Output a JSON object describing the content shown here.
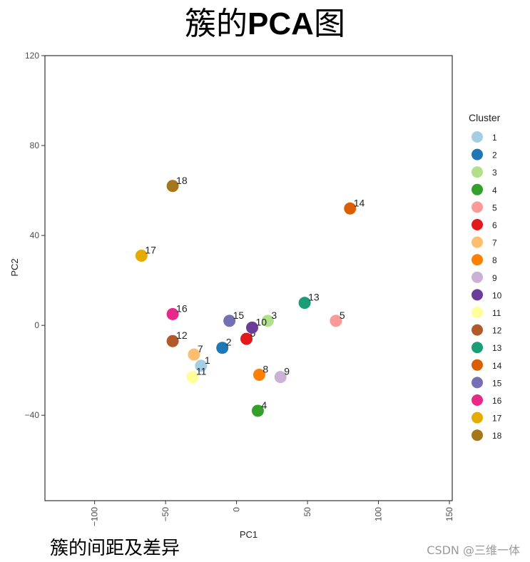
{
  "title": {
    "main": "簇的",
    "bold": "PCA",
    "tail": "图"
  },
  "caption": "簇的间距及差异",
  "watermark": "CSDN @三维一体",
  "chart_data": {
    "type": "scatter",
    "xlabel": "PC1",
    "ylabel": "PC2",
    "xlim": [
      -135,
      152
    ],
    "ylim": [
      -78,
      120
    ],
    "xticks": [
      -100,
      -50,
      0,
      50,
      100,
      150
    ],
    "yticks": [
      -40,
      0,
      40,
      80,
      120
    ],
    "grid": false,
    "legend": {
      "title": "Cluster",
      "position": "right"
    },
    "points": [
      {
        "label": "1",
        "x": -25,
        "y": -18,
        "color": "#a6cee3"
      },
      {
        "label": "2",
        "x": -10,
        "y": -10,
        "color": "#1f78b4"
      },
      {
        "label": "3",
        "x": 22,
        "y": 2,
        "color": "#b2df8a"
      },
      {
        "label": "4",
        "x": 15,
        "y": -38,
        "color": "#33a02c"
      },
      {
        "label": "5",
        "x": 70,
        "y": 2,
        "color": "#fb9a99"
      },
      {
        "label": "6",
        "x": 7,
        "y": -6,
        "color": "#e31a1c"
      },
      {
        "label": "7",
        "x": -30,
        "y": -13,
        "color": "#fdbf6f"
      },
      {
        "label": "8",
        "x": 16,
        "y": -22,
        "color": "#ff7f00"
      },
      {
        "label": "9",
        "x": 31,
        "y": -23,
        "color": "#cab2d6"
      },
      {
        "label": "10",
        "x": 11,
        "y": -1,
        "color": "#6a3d9a"
      },
      {
        "label": "11",
        "x": -31,
        "y": -23,
        "color": "#ffff99"
      },
      {
        "label": "12",
        "x": -45,
        "y": -7,
        "color": "#b15928"
      },
      {
        "label": "13",
        "x": 48,
        "y": 10,
        "color": "#1b9e77"
      },
      {
        "label": "14",
        "x": 80,
        "y": 52,
        "color": "#d95f02"
      },
      {
        "label": "15",
        "x": -5,
        "y": 2,
        "color": "#7570b3"
      },
      {
        "label": "16",
        "x": -45,
        "y": 5,
        "color": "#e7298a"
      },
      {
        "label": "17",
        "x": -67,
        "y": 31,
        "color": "#e6ab02"
      },
      {
        "label": "18",
        "x": -45,
        "y": 62,
        "color": "#a6761d"
      }
    ]
  }
}
